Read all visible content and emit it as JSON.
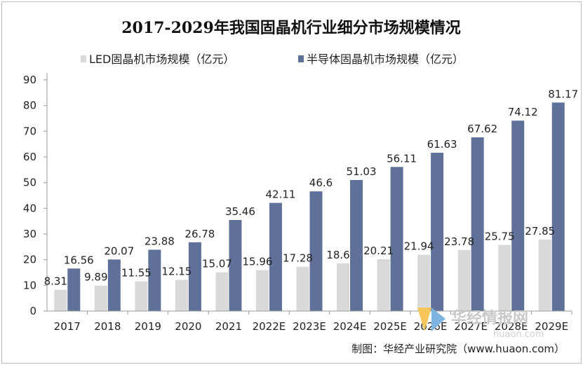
{
  "chart_data": {
    "type": "bar",
    "title": "2017-2029年我国固晶机行业细分市场规模情况",
    "categories": [
      "2017",
      "2018",
      "2019",
      "2020",
      "2021",
      "2022E",
      "2023E",
      "2024E",
      "2025E",
      "2026E",
      "2027E",
      "2028E",
      "2029E"
    ],
    "series": [
      {
        "name": "LED固晶机市场规模（亿元）",
        "color": "#d9d9d9",
        "values": [
          8.31,
          9.89,
          11.55,
          12.15,
          15.07,
          15.96,
          17.28,
          18.6,
          20.21,
          21.94,
          23.78,
          25.75,
          27.85
        ]
      },
      {
        "name": "半导体固晶机市场规模（亿元）",
        "color": "#5f7199",
        "values": [
          16.56,
          20.07,
          23.88,
          26.78,
          35.46,
          42.11,
          46.6,
          51.03,
          56.11,
          61.63,
          67.62,
          74.12,
          81.17
        ]
      }
    ],
    "ylim": [
      0,
      90
    ],
    "yticks": [
      0,
      10,
      20,
      30,
      40,
      50,
      60,
      70,
      80,
      90
    ],
    "xlabel": "",
    "ylabel": "",
    "legend": "top",
    "grid": false
  },
  "source": "制图：华经产业研究院（www.huaon.com）",
  "watermark": {
    "text": "华经情报网",
    "sub": "huaon.com",
    "colors": [
      "#f6c65b",
      "#7fb4e0"
    ]
  }
}
